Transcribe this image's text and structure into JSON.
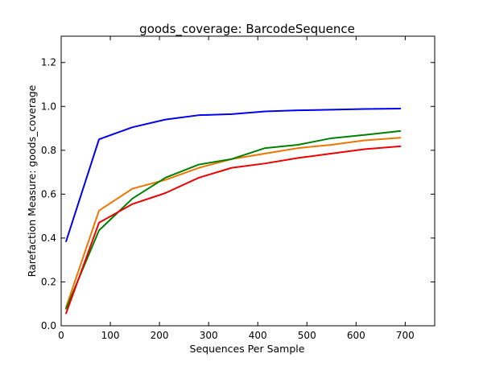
{
  "chart_data": {
    "type": "line",
    "title": "goods_coverage: BarcodeSequence",
    "xlabel": "Sequences Per Sample",
    "ylabel": "Rarefaction Measure: goods_coverage",
    "xlim": [
      0,
      760
    ],
    "ylim": [
      0.0,
      1.32
    ],
    "x_ticks": [
      0,
      100,
      200,
      300,
      400,
      500,
      600,
      700
    ],
    "y_ticks": [
      0.0,
      0.2,
      0.4,
      0.6,
      0.8,
      1.0,
      1.2
    ],
    "x_tick_labels": [
      "0",
      "100",
      "200",
      "300",
      "400",
      "500",
      "600",
      "700"
    ],
    "y_tick_labels": [
      "0.0",
      "0.2",
      "0.4",
      "0.6",
      "0.8",
      "1.0",
      "1.2"
    ],
    "grid": false,
    "legend": "none",
    "x": [
      10,
      77,
      145,
      212,
      280,
      347,
      415,
      482,
      550,
      617,
      690
    ],
    "series": [
      {
        "color": "#0000ee",
        "values": [
          0.385,
          0.85,
          0.905,
          0.94,
          0.96,
          0.965,
          0.977,
          0.982,
          0.985,
          0.988,
          0.99
        ]
      },
      {
        "color": "#ee7600",
        "values": [
          0.085,
          0.525,
          0.625,
          0.665,
          0.72,
          0.76,
          0.785,
          0.81,
          0.825,
          0.845,
          0.857
        ]
      },
      {
        "color": "#008000",
        "values": [
          0.078,
          0.435,
          0.58,
          0.675,
          0.735,
          0.76,
          0.81,
          0.825,
          0.855,
          0.87,
          0.888
        ]
      },
      {
        "color": "#ee0000",
        "values": [
          0.057,
          0.47,
          0.555,
          0.605,
          0.675,
          0.72,
          0.74,
          0.765,
          0.785,
          0.805,
          0.818
        ]
      }
    ]
  }
}
